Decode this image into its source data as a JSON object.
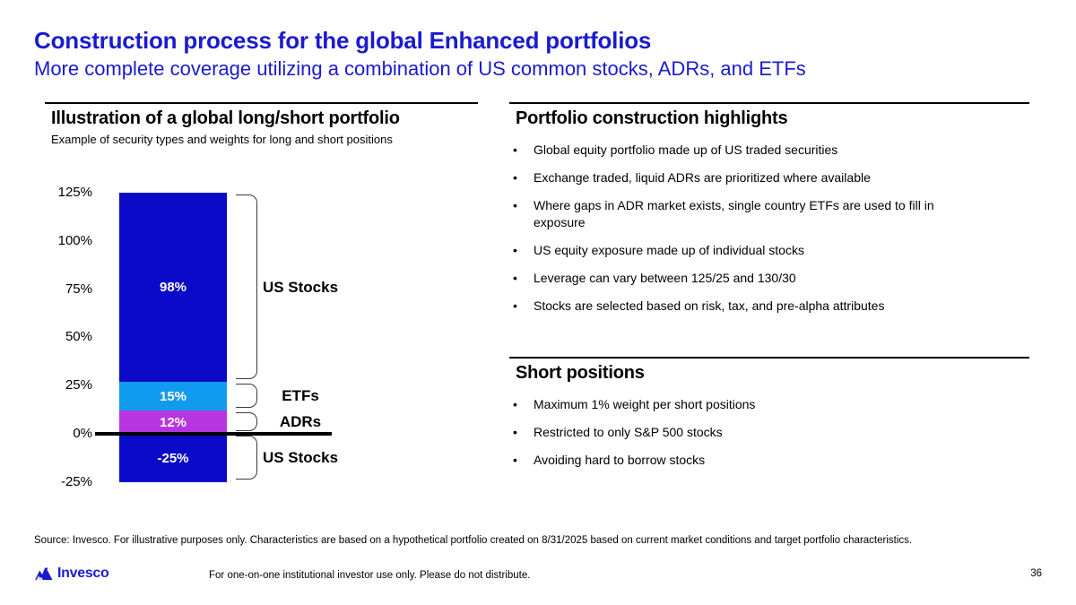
{
  "header": {
    "title": "Construction process for the global Enhanced portfolios",
    "subtitle": "More complete coverage utilizing a combination of US common stocks, ADRs, and ETFs",
    "accent_color": "#1b1bce"
  },
  "left_panel": {
    "heading": "Illustration of a global long/short portfolio",
    "subheading": "Example of security types and weights for long and short positions"
  },
  "chart_data": {
    "type": "bar",
    "title": "Illustration of a global long/short portfolio",
    "subtitle": "Example of security types and weights for long and short positions",
    "ylabel": "",
    "xlabel": "",
    "ylim": [
      -25,
      125
    ],
    "yticks": [
      125,
      100,
      75,
      50,
      25,
      0,
      -25
    ],
    "ytick_suffix": "%",
    "grid": false,
    "zero_line": true,
    "segments": [
      {
        "name": "US Stocks long",
        "label": "98%",
        "value": 98,
        "from": 27,
        "to": 125,
        "color": "#0a0ac8"
      },
      {
        "name": "ETFs",
        "label": "15%",
        "value": 15,
        "from": 12,
        "to": 27,
        "color": "#119bee"
      },
      {
        "name": "ADRs",
        "label": "12%",
        "value": 12,
        "from": 0,
        "to": 12,
        "color": "#b735e0"
      },
      {
        "name": "US Stocks short",
        "label": "-25%",
        "value": -25,
        "from": -25,
        "to": 0,
        "color": "#0a0ac8"
      }
    ],
    "groups": [
      {
        "label": "US Stocks",
        "from": 27,
        "to": 125
      },
      {
        "label": "ETFs",
        "from": 12,
        "to": 27
      },
      {
        "label": "ADRs",
        "from": 0,
        "to": 12
      },
      {
        "label": "US Stocks",
        "from": -25,
        "to": 0
      }
    ]
  },
  "right_panels": [
    {
      "heading": "Portfolio construction highlights",
      "bullets": [
        "Global equity portfolio made up of US traded securities",
        "Exchange traded, liquid ADRs are prioritized where available",
        "Where gaps in ADR market exists, single country ETFs are used to fill in exposure",
        "US equity exposure made up of individual stocks",
        "Leverage can vary between 125/25 and 130/30",
        "Stocks are selected based on risk, tax, and pre-alpha attributes"
      ]
    },
    {
      "heading": "Short positions",
      "bullets": [
        "Maximum 1% weight per short positions",
        "Restricted to only S&P 500 stocks",
        "Avoiding hard to borrow stocks"
      ]
    }
  ],
  "footer": {
    "source": "Source: Invesco. For illustrative purposes only. Characteristics are based on a hypothetical portfolio created on 8/31/2025 based on current market conditions and target portfolio characteristics.",
    "logo_text": "Invesco",
    "disclaimer": "For one-on-one institutional investor use only. Please do not distribute.",
    "page_number": "36"
  }
}
